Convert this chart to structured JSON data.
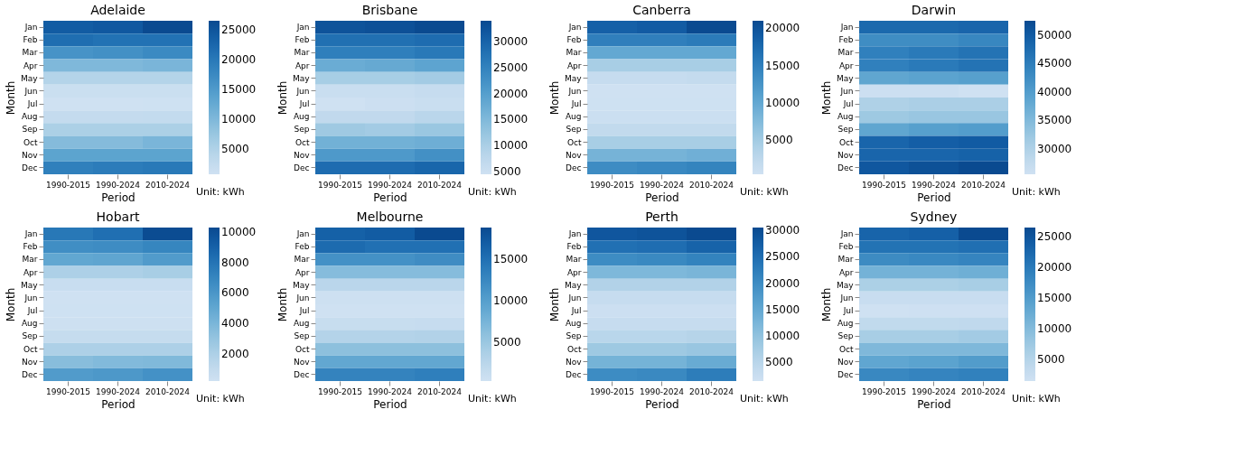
{
  "chart_data": [
    {
      "type": "heatmap",
      "title": "Adelaide",
      "xlabel": "Period",
      "ylabel": "Month",
      "categories": [
        "1990-2015",
        "1990-2024",
        "2010-2024"
      ],
      "y_categories": [
        "Jan",
        "Feb",
        "Mar",
        "Apr",
        "May",
        "Jun",
        "Jul",
        "Aug",
        "Sep",
        "Oct",
        "Nov",
        "Dec"
      ],
      "cells": [
        [
          24000,
          24500,
          26500
        ],
        [
          21500,
          21000,
          21000
        ],
        [
          16000,
          16500,
          17500
        ],
        [
          10000,
          10000,
          10500
        ],
        [
          4500,
          4500,
          4500
        ],
        [
          1500,
          1500,
          1500
        ],
        [
          800,
          800,
          900
        ],
        [
          2500,
          2500,
          2600
        ],
        [
          5500,
          5500,
          5500
        ],
        [
          9500,
          9500,
          10500
        ],
        [
          13500,
          13500,
          13500
        ],
        [
          19000,
          19500,
          20000
        ]
      ],
      "clim": [
        800,
        26500
      ],
      "cticks": [
        5000,
        10000,
        15000,
        20000,
        25000
      ],
      "annotations": [
        "Unit: kWh"
      ]
    },
    {
      "type": "heatmap",
      "title": "Brisbane",
      "xlabel": "Period",
      "ylabel": "Month",
      "categories": [
        "1990-2015",
        "1990-2024",
        "2010-2024"
      ],
      "y_categories": [
        "Jan",
        "Feb",
        "Mar",
        "Apr",
        "May",
        "Jun",
        "Jul",
        "Aug",
        "Sep",
        "Oct",
        "Nov",
        "Dec"
      ],
      "cells": [
        [
          32500,
          33000,
          34000
        ],
        [
          28000,
          28000,
          28500
        ],
        [
          25500,
          25500,
          26500
        ],
        [
          17500,
          18000,
          19000
        ],
        [
          10500,
          10500,
          11000
        ],
        [
          5500,
          5500,
          6000
        ],
        [
          4500,
          5000,
          5500
        ],
        [
          7000,
          7000,
          8000
        ],
        [
          11500,
          11000,
          12000
        ],
        [
          16500,
          16500,
          17000
        ],
        [
          21000,
          21000,
          22500
        ],
        [
          28500,
          28500,
          29500
        ]
      ],
      "clim": [
        4500,
        34000
      ],
      "cticks": [
        5000,
        10000,
        15000,
        20000,
        25000,
        30000
      ],
      "annotations": [
        "Unit: kWh"
      ]
    },
    {
      "type": "heatmap",
      "title": "Canberra",
      "xlabel": "Period",
      "ylabel": "Month",
      "categories": [
        "1990-2015",
        "1990-2024",
        "2010-2024"
      ],
      "y_categories": [
        "Jan",
        "Feb",
        "Mar",
        "Apr",
        "May",
        "Jun",
        "Jul",
        "Aug",
        "Sep",
        "Oct",
        "Nov",
        "Dec"
      ],
      "cells": [
        [
          18500,
          19000,
          21000
        ],
        [
          15000,
          15000,
          15500
        ],
        [
          10000,
          10000,
          10000
        ],
        [
          4500,
          4500,
          4500
        ],
        [
          1500,
          1500,
          1700
        ],
        [
          400,
          400,
          400
        ],
        [
          500,
          500,
          500
        ],
        [
          900,
          900,
          900
        ],
        [
          2000,
          2000,
          2000
        ],
        [
          4500,
          4500,
          4500
        ],
        [
          8500,
          8500,
          9000
        ],
        [
          13500,
          14000,
          14500
        ]
      ],
      "clim": [
        400,
        21000
      ],
      "cticks": [
        5000,
        10000,
        15000,
        20000
      ],
      "annotations": [
        "Unit: kWh"
      ]
    },
    {
      "type": "heatmap",
      "title": "Darwin",
      "xlabel": "Period",
      "ylabel": "Month",
      "categories": [
        "1990-2015",
        "1990-2024",
        "2010-2024"
      ],
      "y_categories": [
        "Jan",
        "Feb",
        "Mar",
        "Apr",
        "May",
        "Jun",
        "Jul",
        "Aug",
        "Sep",
        "Oct",
        "Nov",
        "Dec"
      ],
      "cells": [
        [
          48000,
          48000,
          48500
        ],
        [
          42500,
          42500,
          43500
        ],
        [
          44500,
          45500,
          46500
        ],
        [
          44500,
          45500,
          46500
        ],
        [
          38500,
          39000,
          39500
        ],
        [
          26000,
          26000,
          25500
        ],
        [
          30000,
          30500,
          30500
        ],
        [
          32000,
          32500,
          32500
        ],
        [
          38500,
          39500,
          40000
        ],
        [
          48500,
          49500,
          50000
        ],
        [
          48500,
          48500,
          49000
        ],
        [
          50500,
          51500,
          52500
        ]
      ],
      "clim": [
        25500,
        52500
      ],
      "cticks": [
        30000,
        35000,
        40000,
        45000,
        50000
      ],
      "annotations": [
        "Unit: kWh"
      ]
    },
    {
      "type": "heatmap",
      "title": "Hobart",
      "xlabel": "Period",
      "ylabel": "Month",
      "categories": [
        "1990-2015",
        "1990-2024",
        "2010-2024"
      ],
      "y_categories": [
        "Jan",
        "Feb",
        "Mar",
        "Apr",
        "May",
        "Jun",
        "Jul",
        "Aug",
        "Sep",
        "Oct",
        "Nov",
        "Dec"
      ],
      "cells": [
        [
          7800,
          8300,
          10200
        ],
        [
          6500,
          6600,
          7000
        ],
        [
          5000,
          5100,
          5700
        ],
        [
          2000,
          2000,
          2200
        ],
        [
          600,
          600,
          600
        ],
        [
          200,
          200,
          200
        ],
        [
          250,
          250,
          250
        ],
        [
          300,
          300,
          300
        ],
        [
          800,
          800,
          800
        ],
        [
          2000,
          2000,
          2000
        ],
        [
          3500,
          3700,
          3800
        ],
        [
          5700,
          5900,
          6300
        ]
      ],
      "clim": [
        200,
        10300
      ],
      "cticks": [
        2000,
        4000,
        6000,
        8000,
        10000
      ],
      "annotations": [
        "Unit: kWh"
      ]
    },
    {
      "type": "heatmap",
      "title": "Melbourne",
      "xlabel": "Period",
      "ylabel": "Month",
      "categories": [
        "1990-2015",
        "1990-2024",
        "2010-2024"
      ],
      "y_categories": [
        "Jan",
        "Feb",
        "Mar",
        "Apr",
        "May",
        "Jun",
        "Jul",
        "Aug",
        "Sep",
        "Oct",
        "Nov",
        "Dec"
      ],
      "cells": [
        [
          16500,
          17000,
          18800
        ],
        [
          15500,
          15000,
          15000
        ],
        [
          11500,
          11500,
          12000
        ],
        [
          6500,
          6500,
          6500
        ],
        [
          2500,
          2500,
          2500
        ],
        [
          500,
          500,
          500
        ],
        [
          300,
          300,
          300
        ],
        [
          1200,
          1200,
          1300
        ],
        [
          3000,
          3000,
          3200
        ],
        [
          6000,
          6000,
          6000
        ],
        [
          9000,
          9000,
          9000
        ],
        [
          13000,
          13000,
          13500
        ]
      ],
      "clim": [
        300,
        18800
      ],
      "cticks": [
        5000,
        10000,
        15000
      ],
      "annotations": [
        "Unit: kWh"
      ]
    },
    {
      "type": "heatmap",
      "title": "Perth",
      "xlabel": "Period",
      "ylabel": "Month",
      "categories": [
        "1990-2015",
        "1990-2024",
        "2010-2024"
      ],
      "y_categories": [
        "Jan",
        "Feb",
        "Mar",
        "Apr",
        "May",
        "Jun",
        "Jul",
        "Aug",
        "Sep",
        "Oct",
        "Nov",
        "Dec"
      ],
      "cells": [
        [
          28500,
          29000,
          30500
        ],
        [
          24500,
          25000,
          26500
        ],
        [
          20000,
          20500,
          21500
        ],
        [
          12000,
          12000,
          12500
        ],
        [
          6000,
          6000,
          6000
        ],
        [
          3000,
          3000,
          3000
        ],
        [
          2000,
          2000,
          2000
        ],
        [
          3000,
          3000,
          3000
        ],
        [
          5000,
          5000,
          5500
        ],
        [
          8500,
          8500,
          9000
        ],
        [
          13000,
          13000,
          14500
        ],
        [
          20000,
          20500,
          22500
        ]
      ],
      "clim": [
        1500,
        30500
      ],
      "cticks": [
        5000,
        10000,
        15000,
        20000,
        25000,
        30000
      ],
      "annotations": [
        "Unit: kWh"
      ]
    },
    {
      "type": "heatmap",
      "title": "Sydney",
      "xlabel": "Period",
      "ylabel": "Month",
      "categories": [
        "1990-2015",
        "1990-2024",
        "2010-2024"
      ],
      "y_categories": [
        "Jan",
        "Feb",
        "Mar",
        "Apr",
        "May",
        "Jun",
        "Jul",
        "Aug",
        "Sep",
        "Oct",
        "Nov",
        "Dec"
      ],
      "cells": [
        [
          23000,
          23500,
          26500
        ],
        [
          21000,
          21000,
          21500
        ],
        [
          17500,
          18000,
          18500
        ],
        [
          11500,
          11500,
          12000
        ],
        [
          6000,
          6000,
          6500
        ],
        [
          2500,
          2500,
          2500
        ],
        [
          1500,
          1700,
          1700
        ],
        [
          3500,
          3500,
          3700
        ],
        [
          6500,
          6500,
          7000
        ],
        [
          10500,
          10500,
          10500
        ],
        [
          13500,
          14000,
          15000
        ],
        [
          18000,
          18500,
          19000
        ]
      ],
      "clim": [
        1500,
        26500
      ],
      "cticks": [
        5000,
        10000,
        15000,
        20000,
        25000
      ],
      "annotations": [
        "Unit: kWh"
      ]
    }
  ]
}
